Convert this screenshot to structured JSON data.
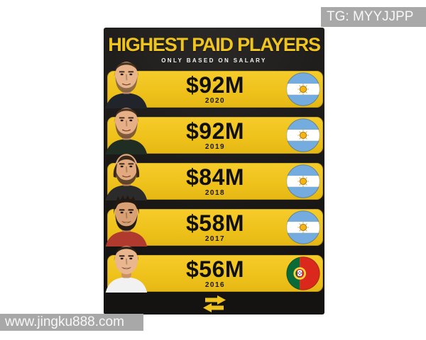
{
  "watermarks": {
    "top_right": "TG: MYYJJPP",
    "bottom_left": "www.jingku888.com"
  },
  "card": {
    "title": "HIGHEST PAID PLAYERS",
    "subtitle": "ONLY BASED ON SALARY",
    "rows": [
      {
        "amount": "$92M",
        "year": "2020",
        "flag": "argentina",
        "photo": "messi-2020-photo"
      },
      {
        "amount": "$92M",
        "year": "2019",
        "flag": "argentina",
        "photo": "messi-2019-photo"
      },
      {
        "amount": "$84M",
        "year": "2018",
        "flag": "argentina",
        "photo": "messi-2018-photo"
      },
      {
        "amount": "$58M",
        "year": "2017",
        "flag": "argentina",
        "photo": "lavezzi-2017-photo"
      },
      {
        "amount": "$56M",
        "year": "2016",
        "flag": "portugal",
        "photo": "ronaldo-2016-photo"
      }
    ],
    "footer_icon": "swap-arrows-icon"
  },
  "chart_data": {
    "type": "table",
    "title": "HIGHEST PAID PLAYERS",
    "subtitle": "ONLY BASED ON SALARY",
    "categories": [
      "2020",
      "2019",
      "2018",
      "2017",
      "2016"
    ],
    "values": [
      92,
      92,
      84,
      58,
      56
    ],
    "value_labels": [
      "$92M",
      "$92M",
      "$84M",
      "$58M",
      "$56M"
    ],
    "unit": "million USD",
    "flags": [
      "argentina",
      "argentina",
      "argentina",
      "argentina",
      "portugal"
    ],
    "legend_position": "none",
    "grid": false
  },
  "colors": {
    "accent_yellow": "#F0C41E",
    "bar_yellow": "#EEC11A",
    "card_bg": "#1E1C1A",
    "bar_text": "#101010",
    "argentina_blue": "#74ACDF",
    "argentina_sun": "#F6B40E",
    "portugal_green": "#0A6A38",
    "portugal_red": "#DA291C",
    "watermark_gray": "#A8A8A8"
  }
}
